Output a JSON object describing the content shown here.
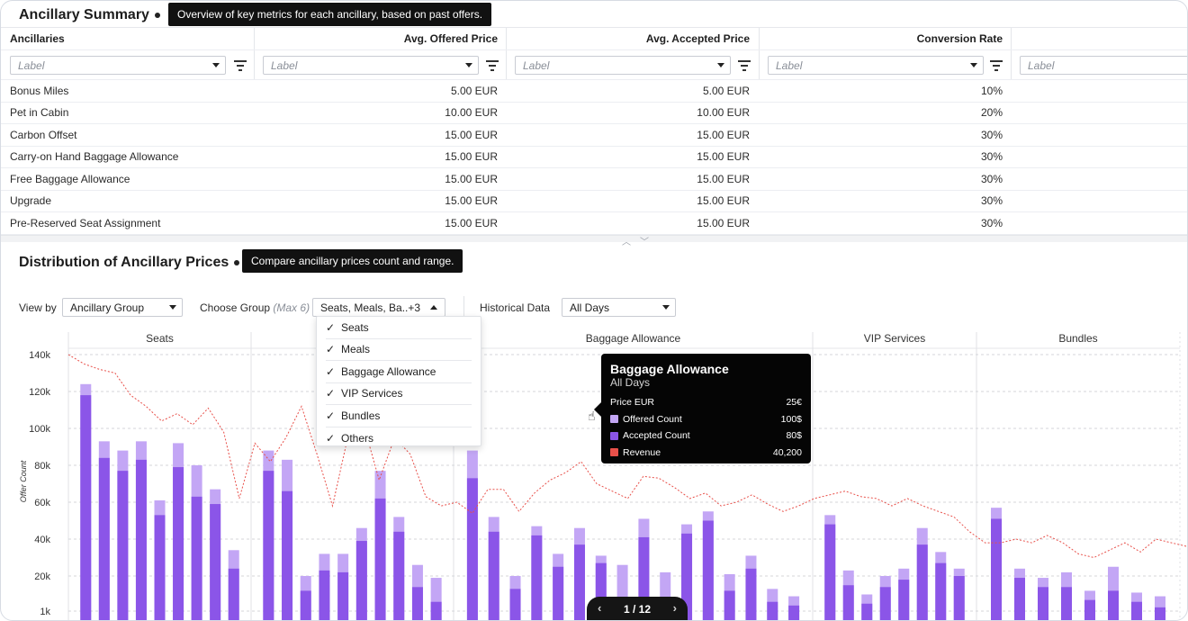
{
  "summary": {
    "title": "Ancillary Summary",
    "tooltip": "Overview of key metrics for each ancillary, based on past offers.",
    "columns": [
      "Ancillaries",
      "Avg. Offered Price",
      "Avg. Accepted Price",
      "Conversion Rate"
    ],
    "filter_placeholder": "Label",
    "rows": [
      {
        "name": "Bonus Miles",
        "offered": "5.00 EUR",
        "accepted": "5.00 EUR",
        "rate": "10%"
      },
      {
        "name": "Pet in Cabin",
        "offered": "10.00 EUR",
        "accepted": "10.00 EUR",
        "rate": "20%"
      },
      {
        "name": "Carbon Offset",
        "offered": "15.00 EUR",
        "accepted": "15.00 EUR",
        "rate": "30%"
      },
      {
        "name": "Carry-on Hand Baggage Allowance",
        "offered": "15.00 EUR",
        "accepted": "15.00 EUR",
        "rate": "30%"
      },
      {
        "name": "Free Baggage Allowance",
        "offered": "15.00 EUR",
        "accepted": "15.00 EUR",
        "rate": "30%"
      },
      {
        "name": "Upgrade",
        "offered": "15.00 EUR",
        "accepted": "15.00 EUR",
        "rate": "30%"
      },
      {
        "name": "Pre-Reserved Seat Assignment",
        "offered": "15.00 EUR",
        "accepted": "15.00 EUR",
        "rate": "30%"
      }
    ]
  },
  "distribution": {
    "title": "Distribution of Ancillary Prices",
    "tooltip": "Compare ancillary prices count and range.",
    "view_by_label": "View by",
    "view_by_value": "Ancillary Group",
    "choose_group_label": "Choose Group",
    "choose_group_hint": "(Max 6)",
    "choose_group_value": "Seats, Meals, Ba..+3",
    "historical_label": "Historical Data",
    "historical_value": "All Days",
    "group_options": [
      {
        "label": "Seats",
        "checked": true
      },
      {
        "label": "Meals",
        "checked": true
      },
      {
        "label": "Baggage Allowance",
        "checked": true
      },
      {
        "label": "VIP Services",
        "checked": true
      },
      {
        "label": "Bundles",
        "checked": true
      },
      {
        "label": "Others",
        "checked": true
      }
    ],
    "check_glyph": "✓"
  },
  "hover_tooltip": {
    "title": "Baggage Allowance",
    "subtitle": "All Days",
    "rows": [
      {
        "label": "Price EUR",
        "value": "25€",
        "color": ""
      },
      {
        "label": "Offered Count",
        "value": "100$",
        "color": "#c3a6f5"
      },
      {
        "label": "Accepted Count",
        "value": "80$",
        "color": "#8b55e8"
      },
      {
        "label": "Revenue",
        "value": "40,200",
        "color": "#e8504a"
      }
    ]
  },
  "pager": {
    "text": "1 / 12",
    "prev": "‹",
    "next": "›"
  },
  "colors": {
    "offered": "#c3a6f5",
    "accepted": "#8b55e8",
    "revenue": "#e8504a"
  },
  "chart_data": {
    "type": "bar",
    "ylabel": "Offer Count",
    "yticks": [
      "140k",
      "120k",
      "100k",
      "80k",
      "60k",
      "40k",
      "20k",
      "1k"
    ],
    "ylim": [
      0,
      140000
    ],
    "panels": [
      {
        "name": "Seats",
        "offered": [
          124000,
          93000,
          88000,
          93000,
          61000,
          92000,
          80000,
          67000,
          34000
        ],
        "accepted": [
          118000,
          84000,
          77000,
          83000,
          53000,
          79000,
          63000,
          59000,
          24000
        ]
      },
      {
        "name": "",
        "offered": [
          88000,
          83000,
          20000,
          32000,
          32000,
          46000,
          77000,
          52000,
          26000,
          19000
        ],
        "accepted": [
          77000,
          66000,
          12000,
          23000,
          22000,
          39000,
          62000,
          44000,
          14000,
          6000
        ]
      },
      {
        "name": "Baggage Allowance",
        "offered": [
          88000,
          52000,
          20000,
          47000,
          32000,
          46000,
          31000,
          26000,
          51000,
          22000,
          48000,
          55000,
          21000,
          31000,
          13000,
          9000
        ],
        "accepted": [
          73000,
          44000,
          13000,
          42000,
          25000,
          37000,
          27000,
          0,
          41000,
          0,
          43000,
          50000,
          12000,
          24000,
          6000,
          4000
        ]
      },
      {
        "name": "VIP Services",
        "offered": [
          53000,
          23000,
          10000,
          20000,
          24000,
          46000,
          33000,
          24000
        ],
        "accepted": [
          48000,
          15000,
          5000,
          14000,
          18000,
          37000,
          27000,
          20000
        ]
      },
      {
        "name": "Bundles",
        "offered": [
          57000,
          24000,
          19000,
          22000,
          12000,
          25000,
          11000,
          9000
        ],
        "accepted": [
          51000,
          19000,
          14000,
          14000,
          7000,
          12000,
          6000,
          3000
        ]
      }
    ],
    "revenue_line": [
      140000,
      135000,
      132000,
      130000,
      118000,
      112000,
      104000,
      108000,
      102000,
      111000,
      98000,
      62000,
      92000,
      82000,
      95000,
      112000,
      86000,
      58000,
      96000,
      102000,
      72000,
      95000,
      86000,
      63000,
      58000,
      60000,
      54000,
      67000,
      67000,
      55000,
      65000,
      72000,
      76000,
      82000,
      70000,
      66000,
      62000,
      74000,
      73000,
      68000,
      62000,
      65000,
      58000,
      60000,
      64000,
      59000,
      55000,
      58000,
      62000,
      64000,
      66000,
      63000,
      62000,
      58000,
      62000,
      58000,
      55000,
      52000,
      44000,
      38000,
      38000,
      40000,
      38000,
      42000,
      38000,
      32000,
      30000,
      34000,
      38000,
      33000,
      40000,
      38000,
      36000
    ]
  }
}
